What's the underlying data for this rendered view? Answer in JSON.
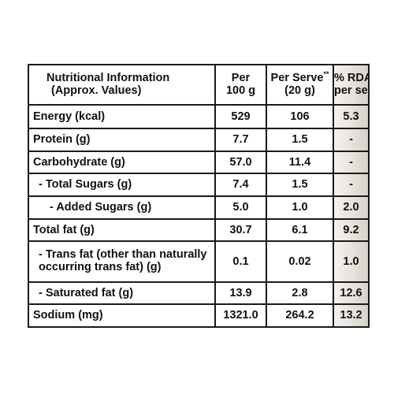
{
  "header": {
    "col1": "Nutritional Information",
    "col1_sub": "(Approx. Values)",
    "col2_line1": "Per",
    "col2_line2": "100 g",
    "col3_line1": "Per Serve",
    "col3_sup": "**",
    "col3_line2": "(20 g)",
    "col4_line1": "% RDA",
    "col4_line2": "per serve"
  },
  "rows": [
    {
      "label": "Energy (kcal)",
      "per100": "529",
      "perServe": "106",
      "rda": "5.3"
    },
    {
      "label": "Protein (g)",
      "per100": "7.7",
      "perServe": "1.5",
      "rda": "-"
    },
    {
      "label": "Carbohydrate (g)",
      "per100": "57.0",
      "perServe": "11.4",
      "rda": "-"
    },
    {
      "label": "- Total Sugars (g)",
      "per100": "7.4",
      "perServe": "1.5",
      "rda": "-"
    },
    {
      "label": "- Added Sugars (g)",
      "per100": "5.0",
      "perServe": "1.0",
      "rda": "2.0"
    },
    {
      "label": "Total fat (g)",
      "per100": "30.7",
      "perServe": "6.1",
      "rda": "9.2"
    },
    {
      "label": "- Trans fat (other than naturally occurring trans fat) (g)",
      "per100": "0.1",
      "perServe": "0.02",
      "rda": "1.0"
    },
    {
      "label": "- Saturated fat (g)",
      "per100": "13.9",
      "perServe": "2.8",
      "rda": "12.6"
    },
    {
      "label": "Sodium (mg)",
      "per100": "1321.0",
      "perServe": "264.2",
      "rda": "13.2"
    }
  ],
  "colors": {
    "text": "#111111",
    "border": "#1a1a1a",
    "rda_shade_light": "#f4f2ef",
    "rda_shade_dark": "#d7d1c9"
  }
}
